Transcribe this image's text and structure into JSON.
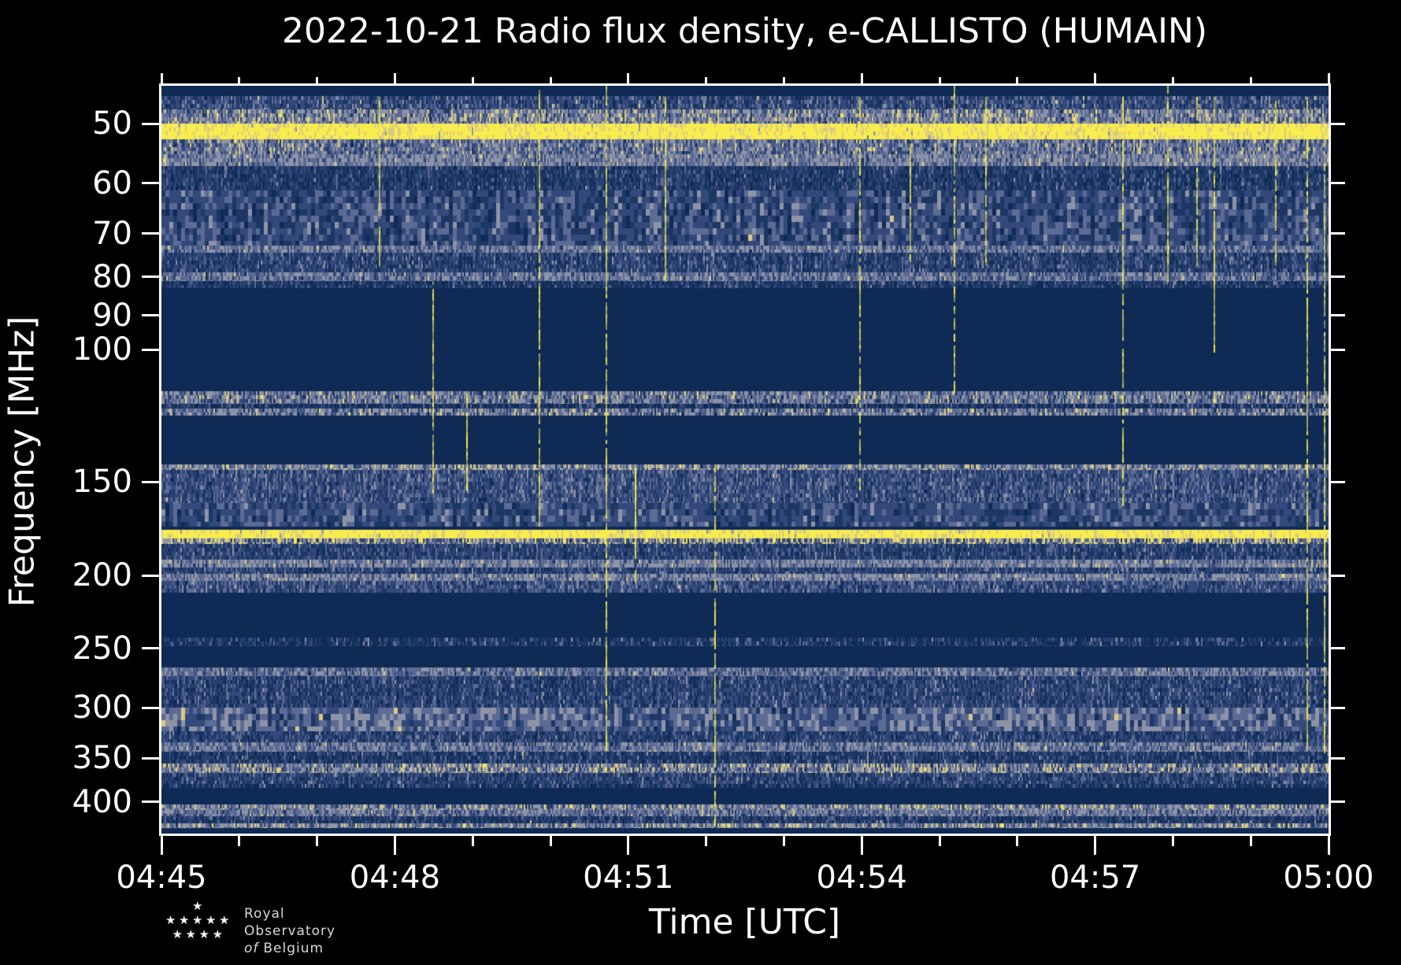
{
  "title": "2022-10-21 Radio flux density, e-CALLISTO (HUMAIN)",
  "xlabel": "Time [UTC]",
  "ylabel": "Frequency [MHz]",
  "logo": {
    "line1": "Royal Observatory",
    "word_italic": "of",
    "line2": "Belgium",
    "star_icon": "★",
    "star_rows": [
      [
        0
      ],
      [
        -2,
        -1,
        0,
        1,
        2
      ],
      [
        -1.5,
        -0.5,
        0.5,
        1.5
      ]
    ]
  },
  "chart_data": {
    "type": "heatmap",
    "subtype": "radio-spectrogram",
    "description": "15-minute dynamic radio spectrum, horizontal receiver/RFI noise bands on dark blue background with bright yellow interference lines; no solar burst structure visible",
    "x_axis": {
      "label": "Time [UTC]",
      "start": "04:45",
      "end": "05:00",
      "span_minutes": 15,
      "major_tick_labels": [
        "04:45",
        "04:48",
        "04:51",
        "04:54",
        "04:57",
        "05:00"
      ],
      "major_tick_minutes": [
        0,
        3,
        6,
        9,
        12,
        15
      ],
      "minor_tick_every_minutes": 1
    },
    "y_axis": {
      "label": "Frequency [MHz]",
      "scale": "log",
      "direction": "low frequency at top",
      "range_mhz": [
        44.5,
        441
      ],
      "major_ticks_mhz": [
        50,
        60,
        70,
        80,
        90,
        100,
        150,
        200,
        250,
        300,
        350,
        400
      ]
    },
    "palette": {
      "navy": "#0e2a55",
      "dark_blue": "#1c3763",
      "mid_blue": "#33497b",
      "blue_gray": "#5c6b94",
      "gray": "#8e94a7",
      "cream": "#d9ca83",
      "yellow": "#f8ec4f"
    },
    "palette_order": [
      "navy",
      "dark_blue",
      "mid_blue",
      "blue_gray",
      "gray",
      "cream",
      "yellow"
    ],
    "styles": {
      "solid_navy": {
        "fill": "navy"
      },
      "noise_top": {
        "w": [
          0.18,
          0.22,
          0.25,
          0.18,
          0.12,
          0.05,
          0
        ]
      },
      "speckle_warm": {
        "w": [
          0.05,
          0.08,
          0.15,
          0.22,
          0.25,
          0.18,
          0.07
        ]
      },
      "bright_yellow": {
        "w": [
          0,
          0,
          0,
          0.02,
          0.05,
          0.25,
          0.68
        ]
      },
      "warm_noise": {
        "w": [
          0.06,
          0.1,
          0.2,
          0.25,
          0.22,
          0.14,
          0.03
        ]
      },
      "gray_band": {
        "w": [
          0.04,
          0.08,
          0.12,
          0.26,
          0.38,
          0.1,
          0.02
        ]
      },
      "dark_noise": {
        "w": [
          0.3,
          0.3,
          0.22,
          0.12,
          0.05,
          0.01,
          0
        ]
      },
      "mottled": {
        "w": [
          0.16,
          0.22,
          0.26,
          0.2,
          0.14,
          0.02,
          0
        ],
        "block": true
      },
      "mottled_gray": {
        "w": [
          0.08,
          0.14,
          0.2,
          0.24,
          0.3,
          0.04,
          0
        ],
        "block": true
      },
      "gray_row": {
        "w": [
          0.06,
          0.1,
          0.16,
          0.28,
          0.32,
          0.07,
          0.01
        ]
      },
      "blue_noise": {
        "w": [
          0.22,
          0.26,
          0.26,
          0.16,
          0.09,
          0.01,
          0
        ]
      },
      "fade_noise": {
        "w": [
          0.35,
          0.28,
          0.2,
          0.12,
          0.05,
          0,
          0
        ]
      },
      "airband": {
        "w": [
          0.12,
          0.1,
          0.14,
          0.2,
          0.26,
          0.12,
          0.06
        ]
      },
      "airband_gap": {
        "w": [
          0.45,
          0.2,
          0.18,
          0.12,
          0.05,
          0,
          0
        ]
      },
      "cream_row": {
        "w": [
          0.05,
          0.08,
          0.14,
          0.2,
          0.26,
          0.2,
          0.07
        ]
      },
      "dense_bluegray": {
        "w": [
          0.14,
          0.2,
          0.28,
          0.22,
          0.14,
          0.02,
          0
        ]
      },
      "yellow_speckle": {
        "w": [
          0.1,
          0.1,
          0.15,
          0.15,
          0.15,
          0.15,
          0.2
        ]
      },
      "thin_band": {
        "w": [
          0.4,
          0.22,
          0.18,
          0.12,
          0.07,
          0.01,
          0
        ]
      },
      "stripes_blue": {
        "w": [
          0.3,
          0.3,
          0.2,
          0.13,
          0.06,
          0.01,
          0
        ]
      },
      "cream_speckle": {
        "w": [
          0.08,
          0.1,
          0.14,
          0.18,
          0.22,
          0.2,
          0.08
        ]
      },
      "bottom_dense": {
        "w": [
          0.06,
          0.08,
          0.14,
          0.2,
          0.26,
          0.2,
          0.06
        ]
      }
    },
    "bands": [
      {
        "f": [
          44.5,
          45.9
        ],
        "style": "solid_navy"
      },
      {
        "f": [
          45.9,
          47.9
        ],
        "style": "noise_top"
      },
      {
        "f": [
          47.9,
          50.0
        ],
        "style": "speckle_warm"
      },
      {
        "f": [
          50.0,
          52.4
        ],
        "style": "bright_yellow"
      },
      {
        "f": [
          52.4,
          54.9
        ],
        "style": "warm_noise"
      },
      {
        "f": [
          54.9,
          56.9
        ],
        "style": "gray_band"
      },
      {
        "f": [
          56.9,
          61.3
        ],
        "style": "dark_noise"
      },
      {
        "f": [
          61.3,
          72.6
        ],
        "style": "mottled"
      },
      {
        "f": [
          72.6,
          74.3
        ],
        "style": "gray_row"
      },
      {
        "f": [
          74.3,
          78.8
        ],
        "style": "blue_noise"
      },
      {
        "f": [
          78.8,
          80.9
        ],
        "style": "gray_row"
      },
      {
        "f": [
          80.9,
          82.8
        ],
        "style": "fade_noise"
      },
      {
        "f": [
          82.8,
          113.5
        ],
        "style": "solid_navy"
      },
      {
        "f": [
          113.5,
          117.9
        ],
        "style": "airband"
      },
      {
        "f": [
          117.9,
          119.6
        ],
        "style": "airband_gap"
      },
      {
        "f": [
          119.6,
          122.4
        ],
        "style": "airband"
      },
      {
        "f": [
          122.4,
          142.3
        ],
        "style": "solid_navy"
      },
      {
        "f": [
          142.3,
          144.4
        ],
        "style": "cream_row"
      },
      {
        "f": [
          144.4,
          160.1
        ],
        "style": "dense_bluegray"
      },
      {
        "f": [
          160.1,
          171.9
        ],
        "style": "mottled"
      },
      {
        "f": [
          171.9,
          173.5
        ],
        "style": "solid_navy"
      },
      {
        "f": [
          173.5,
          178.5
        ],
        "style": "bright_yellow"
      },
      {
        "f": [
          178.5,
          181.4
        ],
        "style": "yellow_speckle"
      },
      {
        "f": [
          181.4,
          190.2
        ],
        "style": "blue_noise"
      },
      {
        "f": [
          190.2,
          194.8
        ],
        "style": "gray_band"
      },
      {
        "f": [
          194.8,
          198.6
        ],
        "style": "blue_noise"
      },
      {
        "f": [
          198.6,
          203.4
        ],
        "style": "gray_band"
      },
      {
        "f": [
          203.4,
          210.9
        ],
        "style": "dense_bluegray"
      },
      {
        "f": [
          210.9,
          241.7
        ],
        "style": "solid_navy"
      },
      {
        "f": [
          241.7,
          248.2
        ],
        "style": "thin_band"
      },
      {
        "f": [
          248.2,
          265.2
        ],
        "style": "solid_navy"
      },
      {
        "f": [
          265.2,
          272.3
        ],
        "style": "gray_row"
      },
      {
        "f": [
          272.3,
          299.5
        ],
        "style": "blue_noise"
      },
      {
        "f": [
          299.5,
          321.9
        ],
        "style": "mottled_gray"
      },
      {
        "f": [
          321.9,
          333.6
        ],
        "style": "blue_noise"
      },
      {
        "f": [
          333.6,
          343.2
        ],
        "style": "gray_row"
      },
      {
        "f": [
          343.2,
          355.7
        ],
        "style": "stripes_blue"
      },
      {
        "f": [
          355.7,
          365.9
        ],
        "style": "cream_speckle"
      },
      {
        "f": [
          365.9,
          378.9
        ],
        "style": "blue_noise"
      },
      {
        "f": [
          378.9,
          383.4
        ],
        "style": "thin_band"
      },
      {
        "f": [
          383.4,
          403.8
        ],
        "style": "solid_navy"
      },
      {
        "f": [
          403.8,
          410.5
        ],
        "style": "cream_row"
      },
      {
        "f": [
          410.5,
          418.3
        ],
        "style": "gray_row"
      },
      {
        "f": [
          418.3,
          427.3
        ],
        "style": "stripes_blue"
      },
      {
        "f": [
          427.3,
          433.3
        ],
        "style": "bottom_dense"
      },
      {
        "f": [
          433.3,
          441.0
        ],
        "style": "solid_navy"
      }
    ],
    "rfi_streaks": [
      {
        "t_min": 2.79,
        "f": [
          46,
          77
        ]
      },
      {
        "t_min": 3.48,
        "f": [
          81,
          154
        ]
      },
      {
        "t_min": 3.92,
        "f": [
          114,
          153
        ]
      },
      {
        "t_min": 4.85,
        "f": [
          45,
          175
        ]
      },
      {
        "t_min": 5.71,
        "f": [
          44.5,
          340
        ]
      },
      {
        "t_min": 6.08,
        "f": [
          142,
          204
        ]
      },
      {
        "t_min": 6.47,
        "f": [
          46,
          81
        ]
      },
      {
        "t_min": 7.11,
        "f": [
          142,
          430
        ]
      },
      {
        "t_min": 8.97,
        "f": [
          46,
          154
        ]
      },
      {
        "t_min": 9.62,
        "f": [
          46,
          77
        ]
      },
      {
        "t_min": 10.18,
        "f": [
          44.5,
          114
        ]
      },
      {
        "t_min": 10.59,
        "f": [
          46,
          77
        ]
      },
      {
        "t_min": 12.35,
        "f": [
          46,
          160
        ]
      },
      {
        "t_min": 12.93,
        "f": [
          44.5,
          81
        ]
      },
      {
        "t_min": 13.3,
        "f": [
          46,
          77
        ]
      },
      {
        "t_min": 13.52,
        "f": [
          46,
          100
        ]
      },
      {
        "t_min": 14.31,
        "f": [
          46,
          77
        ]
      },
      {
        "t_min": 14.72,
        "f": [
          46,
          338
        ]
      },
      {
        "t_min": 14.94,
        "f": [
          50,
          345
        ]
      }
    ],
    "streak_color": "#f8ec4f"
  },
  "layout_colors": {
    "background": "#000000",
    "spine": "#ffffff",
    "text": "#ffffff",
    "logo_text": "#d8d8d8"
  }
}
